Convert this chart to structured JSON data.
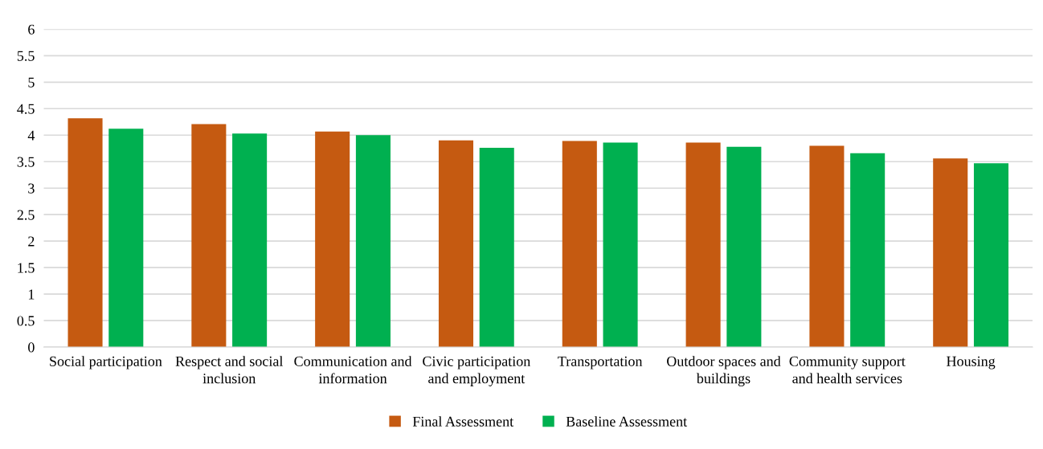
{
  "chart_data": {
    "type": "bar",
    "categories": [
      "Social participation",
      "Respect and social inclusion",
      "Communication and information",
      "Civic participation and employment",
      "Transportation",
      "Outdoor spaces and buildings",
      "Community support and health services",
      "Housing"
    ],
    "series": [
      {
        "name": "Final Assessment",
        "color": "#c55a11",
        "values": [
          4.32,
          4.21,
          4.07,
          3.9,
          3.89,
          3.86,
          3.8,
          3.56
        ]
      },
      {
        "name": "Baseline Assessment",
        "color": "#00b050",
        "values": [
          4.12,
          4.03,
          4.0,
          3.76,
          3.86,
          3.78,
          3.66,
          3.47
        ]
      }
    ],
    "ylim": [
      0,
      6
    ],
    "yticks": [
      0,
      0.5,
      1,
      1.5,
      2,
      2.5,
      3,
      3.5,
      4,
      4.5,
      5,
      5.5,
      6
    ],
    "grid": "y",
    "legend": "bottom"
  }
}
